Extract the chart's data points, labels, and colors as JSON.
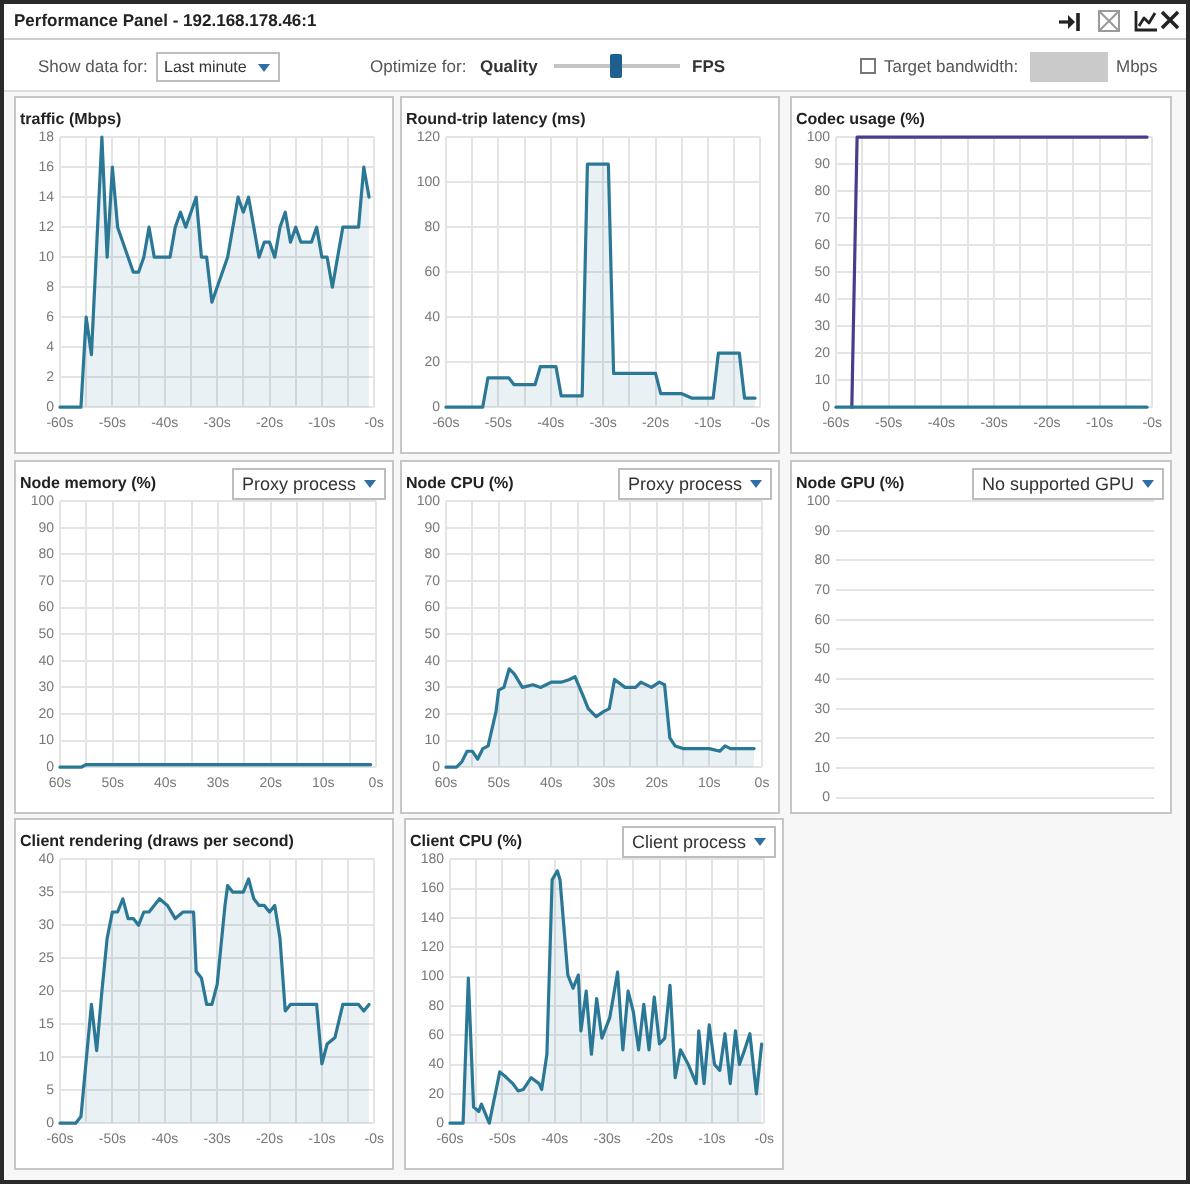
{
  "chart_data": [
    {
      "type": "other",
      "title": "Performance Panel - 192.168.178.46:1",
      "annotations": [
        "Show data for:",
        "Last minute",
        "Optimize for:",
        "Quality",
        "FPS",
        "Target bandwidth:",
        "Mbps"
      ]
    },
    {
      "type": "area",
      "title": "traffic (Mbps)",
      "x": [
        -60,
        -56,
        -55,
        -54,
        -52,
        -51,
        -50,
        -49,
        -47.5,
        -46,
        -45,
        -44,
        -43,
        -42,
        -39,
        -38,
        -37,
        -36,
        -34,
        -33,
        -32,
        -31,
        -28,
        -26,
        -25,
        -24,
        -22,
        -21,
        -20,
        -19,
        -18,
        -17,
        -16,
        -15,
        -14,
        -12,
        -11,
        -10,
        -9,
        -8,
        -6,
        -3,
        -2,
        -1
      ],
      "values": [
        0,
        0,
        6,
        3.5,
        18,
        10,
        16,
        12,
        10.5,
        9,
        9,
        10,
        12,
        10,
        10,
        12,
        13,
        12,
        14,
        10,
        10,
        7,
        10,
        14,
        13,
        14,
        10,
        11,
        11,
        10,
        12,
        13,
        11,
        12,
        11,
        11,
        12,
        10,
        10,
        8,
        12,
        12,
        16,
        14
      ],
      "color": "#2b7896",
      "xlim": [
        -60,
        0
      ],
      "xticks": [
        {
          "value": -60,
          "label": "-60s"
        },
        {
          "value": -55,
          "label": null
        },
        {
          "value": -50,
          "label": "-50s"
        },
        {
          "value": -45,
          "label": null
        },
        {
          "value": -40,
          "label": "-40s"
        },
        {
          "value": -35,
          "label": null
        },
        {
          "value": -30,
          "label": "-30s"
        },
        {
          "value": -25,
          "label": null
        },
        {
          "value": -20,
          "label": "-20s"
        },
        {
          "value": -15,
          "label": null
        },
        {
          "value": -10,
          "label": "-10s"
        },
        {
          "value": -5,
          "label": null
        },
        {
          "value": 0,
          "label": "-0s"
        }
      ],
      "ylim": [
        0,
        18
      ],
      "yticks": [
        0,
        2,
        4,
        6,
        8,
        10,
        12,
        14,
        16,
        18
      ],
      "grid": true
    },
    {
      "type": "area",
      "title": "Round-trip latency (ms)",
      "x": [
        -60,
        -53,
        -52,
        -48,
        -47,
        -43,
        -42,
        -39,
        -38,
        -34,
        -33,
        -29,
        -28,
        -20,
        -19,
        -15,
        -13,
        -9,
        -8,
        -4,
        -3,
        -1
      ],
      "values": [
        0,
        0,
        13,
        13,
        10,
        10,
        18,
        18,
        5,
        5,
        108,
        108,
        15,
        15,
        6,
        6,
        4,
        4,
        24,
        24,
        4,
        4
      ],
      "color": "#2b7896",
      "xlim": [
        -60,
        0
      ],
      "xticks": [
        {
          "value": -60,
          "label": "-60s"
        },
        {
          "value": -55,
          "label": null
        },
        {
          "value": -50,
          "label": "-50s"
        },
        {
          "value": -45,
          "label": null
        },
        {
          "value": -40,
          "label": "-40s"
        },
        {
          "value": -35,
          "label": null
        },
        {
          "value": -30,
          "label": "-30s"
        },
        {
          "value": -25,
          "label": null
        },
        {
          "value": -20,
          "label": "-20s"
        },
        {
          "value": -15,
          "label": null
        },
        {
          "value": -10,
          "label": "-10s"
        },
        {
          "value": -5,
          "label": null
        },
        {
          "value": 0,
          "label": "-0s"
        }
      ],
      "ylim": [
        0,
        120
      ],
      "yticks": [
        0,
        20,
        40,
        60,
        80,
        100,
        120
      ],
      "grid": true
    },
    {
      "type": "line",
      "title": "Codec usage (%)",
      "series": [
        {
          "color": "#473d8c",
          "x": [
            -57,
            -56,
            -1
          ],
          "values": [
            0,
            100,
            100
          ]
        },
        {
          "color": "#2b7896",
          "x": [
            -60,
            -1
          ],
          "values": [
            0,
            0
          ]
        }
      ],
      "xlim": [
        -60,
        0
      ],
      "xticks": [
        {
          "value": -60,
          "label": "-60s"
        },
        {
          "value": -55,
          "label": null
        },
        {
          "value": -50,
          "label": "-50s"
        },
        {
          "value": -45,
          "label": null
        },
        {
          "value": -40,
          "label": "-40s"
        },
        {
          "value": -35,
          "label": null
        },
        {
          "value": -30,
          "label": "-30s"
        },
        {
          "value": -25,
          "label": null
        },
        {
          "value": -20,
          "label": "-20s"
        },
        {
          "value": -15,
          "label": null
        },
        {
          "value": -10,
          "label": "-10s"
        },
        {
          "value": -5,
          "label": null
        },
        {
          "value": 0,
          "label": "-0s"
        }
      ],
      "ylim": [
        0,
        100
      ],
      "yticks": [
        0,
        10,
        20,
        30,
        40,
        50,
        60,
        70,
        80,
        90,
        100
      ],
      "grid": true
    },
    {
      "type": "area",
      "title": "Node memory (%)",
      "annotations": [
        "Proxy process"
      ],
      "x": [
        -60,
        -56,
        -55,
        -1
      ],
      "values": [
        0,
        0,
        1,
        1
      ],
      "color": "#2b7896",
      "xlim": [
        -60,
        0
      ],
      "xticks": [
        {
          "value": -60,
          "label": "60s"
        },
        {
          "value": -55,
          "label": null
        },
        {
          "value": -50,
          "label": "50s"
        },
        {
          "value": -45,
          "label": null
        },
        {
          "value": -40,
          "label": "40s"
        },
        {
          "value": -35,
          "label": null
        },
        {
          "value": -30,
          "label": "30s"
        },
        {
          "value": -25,
          "label": null
        },
        {
          "value": -20,
          "label": "20s"
        },
        {
          "value": -15,
          "label": null
        },
        {
          "value": -10,
          "label": "10s"
        },
        {
          "value": -5,
          "label": null
        },
        {
          "value": 0,
          "label": "0s"
        }
      ],
      "ylim": [
        0,
        100
      ],
      "yticks": [
        0,
        10,
        20,
        30,
        40,
        50,
        60,
        70,
        80,
        90,
        100
      ],
      "grid": true
    },
    {
      "type": "area",
      "title": "Node CPU (%)",
      "annotations": [
        "Proxy process"
      ],
      "x": [
        -60,
        -58,
        -57,
        -56,
        -55,
        -54,
        -53,
        -52,
        -50.5,
        -50,
        -49,
        -48,
        -47,
        -45.5,
        -43.5,
        -42,
        -41,
        -40,
        -38,
        -36.5,
        -35.5,
        -34,
        -33,
        -31.5,
        -30,
        -29,
        -28,
        -26,
        -24,
        -23,
        -21,
        -19.5,
        -18.5,
        -17.5,
        -16.5,
        -15,
        -13.5,
        -10,
        -8,
        -7,
        -6,
        -1.5
      ],
      "values": [
        0,
        0,
        2,
        6,
        6,
        3,
        7,
        8,
        21,
        29,
        30,
        37,
        35,
        30,
        31,
        30,
        31,
        32,
        32,
        33,
        34,
        27,
        22,
        19,
        21,
        22,
        33,
        30,
        30,
        32,
        30,
        32,
        31,
        11,
        8,
        7,
        7,
        7,
        6,
        8,
        7,
        7
      ],
      "color": "#2b7896",
      "xlim": [
        -60,
        0
      ],
      "xticks": [
        {
          "value": -60,
          "label": "60s"
        },
        {
          "value": -55,
          "label": null
        },
        {
          "value": -50,
          "label": "50s"
        },
        {
          "value": -45,
          "label": null
        },
        {
          "value": -40,
          "label": "40s"
        },
        {
          "value": -35,
          "label": null
        },
        {
          "value": -30,
          "label": "30s"
        },
        {
          "value": -25,
          "label": null
        },
        {
          "value": -20,
          "label": "20s"
        },
        {
          "value": -15,
          "label": null
        },
        {
          "value": -10,
          "label": "10s"
        },
        {
          "value": -5,
          "label": null
        },
        {
          "value": 0,
          "label": "0s"
        }
      ],
      "ylim": [
        0,
        100
      ],
      "yticks": [
        0,
        10,
        20,
        30,
        40,
        50,
        60,
        70,
        80,
        90,
        100
      ],
      "grid": true
    },
    {
      "type": "line",
      "title": "Node GPU (%)",
      "annotations": [
        "No supported GPU"
      ],
      "categories": [
        null,
        null,
        null,
        null,
        null,
        null,
        null
      ],
      "values": [
        null,
        null,
        null,
        null,
        null,
        null,
        null
      ],
      "color": "#2b7896",
      "ylim": [
        0,
        100
      ],
      "yticks": [
        0,
        10,
        20,
        30,
        40,
        50,
        60,
        70,
        80,
        90,
        100
      ],
      "grid": "y",
      "tick_labels": "y"
    },
    {
      "type": "area",
      "title": "Client rendering (draws per second)",
      "x": [
        -60,
        -57,
        -56,
        -54,
        -53,
        -52,
        -51,
        -50,
        -49,
        -48,
        -47,
        -46,
        -45,
        -44,
        -43,
        -41,
        -39.5,
        -38,
        -36.5,
        -34.5,
        -34,
        -33,
        -32,
        -31,
        -30,
        -28.5,
        -28,
        -27,
        -25,
        -24,
        -23,
        -22,
        -21,
        -20,
        -19,
        -18,
        -17,
        -16,
        -11,
        -10,
        -9,
        -7.5,
        -6,
        -3,
        -2,
        -1
      ],
      "values": [
        0,
        0,
        1,
        18,
        11,
        20,
        28,
        32,
        32,
        34,
        31,
        31,
        30,
        32,
        32,
        34,
        33,
        31,
        32,
        32,
        23,
        22,
        18,
        18,
        21,
        33,
        36,
        35,
        35,
        37,
        34,
        33,
        33,
        32,
        33,
        28,
        17,
        18,
        18,
        9,
        12,
        13,
        18,
        18,
        17,
        18
      ],
      "color": "#2b7896",
      "xlim": [
        -60,
        0
      ],
      "xticks": [
        {
          "value": -60,
          "label": "-60s"
        },
        {
          "value": -55,
          "label": null
        },
        {
          "value": -50,
          "label": "-50s"
        },
        {
          "value": -45,
          "label": null
        },
        {
          "value": -40,
          "label": "-40s"
        },
        {
          "value": -35,
          "label": null
        },
        {
          "value": -30,
          "label": "-30s"
        },
        {
          "value": -25,
          "label": null
        },
        {
          "value": -20,
          "label": "-20s"
        },
        {
          "value": -15,
          "label": null
        },
        {
          "value": -10,
          "label": "-10s"
        },
        {
          "value": -5,
          "label": null
        },
        {
          "value": 0,
          "label": "-0s"
        }
      ],
      "ylim": [
        0,
        40
      ],
      "yticks": [
        0,
        5,
        10,
        15,
        20,
        25,
        30,
        35,
        40
      ],
      "grid": true
    },
    {
      "type": "area",
      "title": "Client CPU (%)",
      "annotations": [
        "Client process"
      ],
      "x": [
        -60,
        -57.5,
        -56.5,
        -55.5,
        -54.5,
        -54,
        -52.5,
        -50.5,
        -49.5,
        -48,
        -47,
        -46,
        -44.5,
        -43,
        -42.5,
        -41.5,
        -40.5,
        -39.5,
        -39,
        -37.5,
        -36.5,
        -35.5,
        -35,
        -34,
        -33,
        -32,
        -31,
        -29.5,
        -28,
        -27,
        -26,
        -25,
        -24,
        -23,
        -22,
        -21,
        -20,
        -19,
        -18,
        -17,
        -16,
        -14.5,
        -13,
        -12.5,
        -11.5,
        -10.5,
        -9.5,
        -8.5,
        -7.5,
        -6.5,
        -5.5,
        -4.75,
        -3.75,
        -2.75,
        -1.5,
        -0.5
      ],
      "values": [
        0,
        0,
        99,
        11,
        8,
        13,
        0,
        35,
        32,
        27,
        22,
        23,
        31,
        27,
        23,
        47,
        166,
        172,
        166,
        101,
        92,
        101,
        63,
        90,
        47,
        85,
        58,
        72,
        103,
        50,
        90,
        76,
        50,
        81,
        50,
        86,
        54,
        58,
        94,
        31,
        50,
        40,
        27,
        63,
        27,
        67,
        40,
        36,
        61,
        27,
        63,
        40,
        50,
        61,
        20,
        54
      ],
      "color": "#2b7896",
      "xlim": [
        -60,
        0
      ],
      "xticks": [
        {
          "value": -60,
          "label": "-60s"
        },
        {
          "value": -55,
          "label": null
        },
        {
          "value": -50,
          "label": "-50s"
        },
        {
          "value": -45,
          "label": null
        },
        {
          "value": -40,
          "label": "-40s"
        },
        {
          "value": -35,
          "label": null
        },
        {
          "value": -30,
          "label": "-30s"
        },
        {
          "value": -25,
          "label": null
        },
        {
          "value": -20,
          "label": "-20s"
        },
        {
          "value": -15,
          "label": null
        },
        {
          "value": -10,
          "label": "-10s"
        },
        {
          "value": -5,
          "label": null
        },
        {
          "value": 0,
          "label": "-0s"
        }
      ],
      "ylim": [
        0,
        180
      ],
      "yticks": [
        0,
        20,
        40,
        60,
        80,
        100,
        120,
        140,
        160,
        180
      ],
      "grid": true
    }
  ]
}
